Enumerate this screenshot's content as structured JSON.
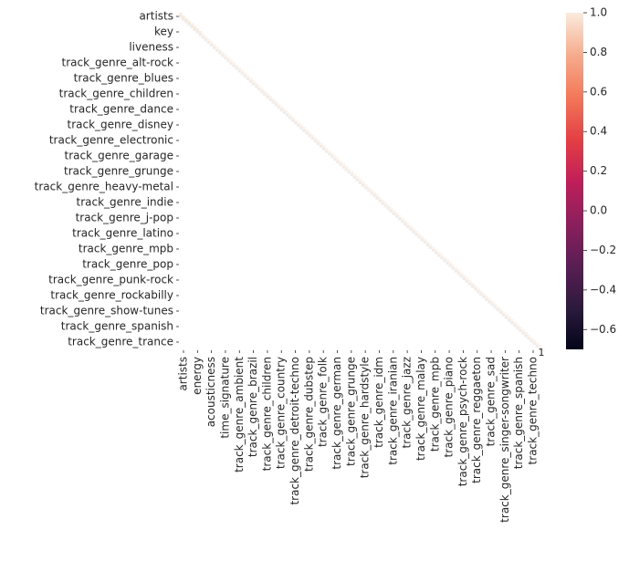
{
  "chart_data": {
    "type": "heatmap",
    "title": "",
    "xlabel": "",
    "ylabel": "",
    "matrix_size": 130,
    "diagonal_value": 1,
    "value_range": [
      -0.7,
      1.0
    ],
    "colormap": "rocket",
    "colorbar_ticks": [
      "1.0",
      "0.8",
      "0.6",
      "0.4",
      "0.2",
      "0.0",
      "−0.2",
      "−0.4",
      "−0.6"
    ],
    "colorbar_tick_values": [
      1.0,
      0.8,
      0.6,
      0.4,
      0.2,
      0.0,
      -0.2,
      -0.4,
      -0.6
    ],
    "annotation": "1",
    "y_ticks": [
      "artists",
      "key",
      "liveness",
      "track_genre_alt-rock",
      "track_genre_blues",
      "track_genre_children",
      "track_genre_dance",
      "track_genre_disney",
      "track_genre_electronic",
      "track_genre_garage",
      "track_genre_grunge",
      "track_genre_heavy-metal",
      "track_genre_indie",
      "track_genre_j-pop",
      "track_genre_latino",
      "track_genre_mpb",
      "track_genre_pop",
      "track_genre_punk-rock",
      "track_genre_rockabilly",
      "track_genre_show-tunes",
      "track_genre_spanish",
      "track_genre_trance"
    ],
    "x_ticks": [
      "artists",
      "energy",
      "acousticness",
      "time_signature",
      "track_genre_ambient",
      "track_genre_brazil",
      "track_genre_children",
      "track_genre_country",
      "track_genre_detroit-techno",
      "track_genre_dubstep",
      "track_genre_folk",
      "track_genre_german",
      "track_genre_grunge",
      "track_genre_hardstyle",
      "track_genre_idm",
      "track_genre_iranian",
      "track_genre_jazz",
      "track_genre_malay",
      "track_genre_mpb",
      "track_genre_piano",
      "track_genre_psych-rock",
      "track_genre_reggaeton",
      "track_genre_sad",
      "track_genre_singer-songwriter",
      "track_genre_spanish",
      "track_genre_techno"
    ],
    "grid": false,
    "legend": "colorbar-right"
  }
}
